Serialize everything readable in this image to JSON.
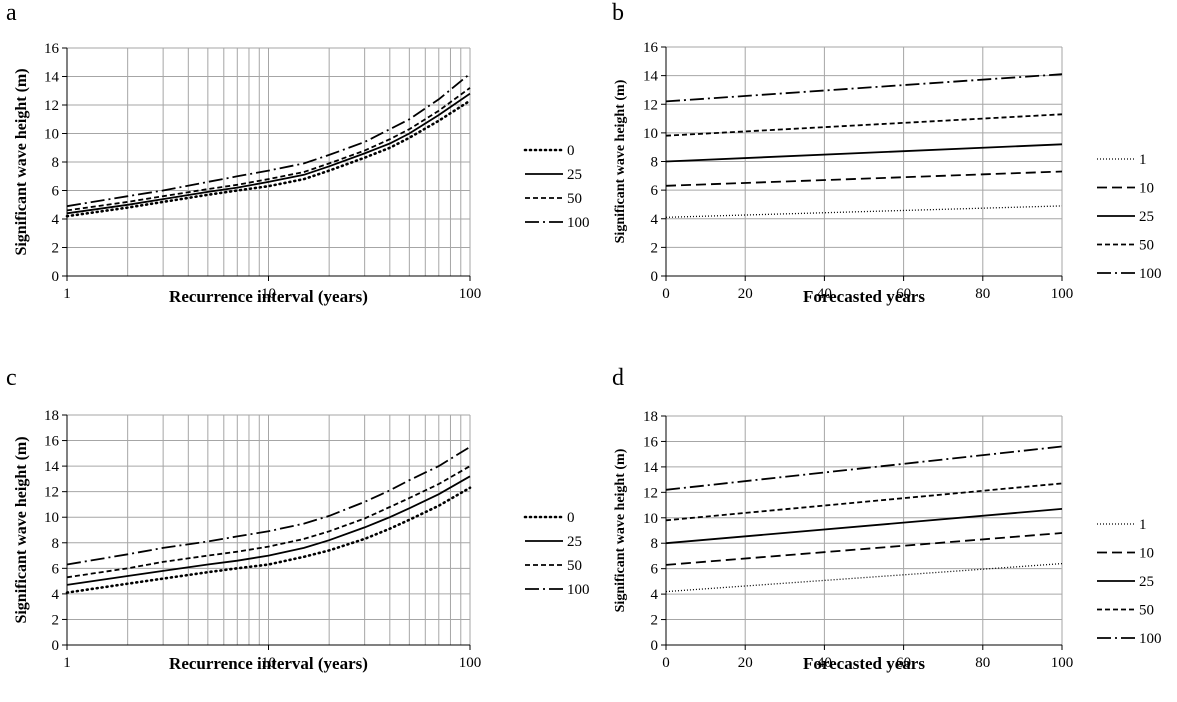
{
  "figure": {
    "legend_style": {
      "0": "1 4",
      "1": "1 2",
      "10": "10 5",
      "25": "",
      "50": "5 3",
      "100": "14 4 2 4"
    },
    "line_color": "#000000",
    "grid_color": "#a6a6a6"
  },
  "chart_data": [
    {
      "id": "a",
      "panel_label": "a",
      "type": "line",
      "xscale": "log",
      "xlabel": "Recurrence interval (years)",
      "ylabel": "Significant wave height (m)",
      "xlim": [
        1,
        100
      ],
      "ylim": [
        0,
        16
      ],
      "xticks": [
        1,
        10,
        100
      ],
      "yticks": [
        0,
        2,
        4,
        6,
        8,
        10,
        12,
        14,
        16
      ],
      "grid": true,
      "legend_position": "right",
      "series": [
        {
          "name": "0",
          "points": [
            [
              1,
              4.2
            ],
            [
              2,
              4.8
            ],
            [
              3,
              5.2
            ],
            [
              5,
              5.7
            ],
            [
              7,
              6.0
            ],
            [
              10,
              6.3
            ],
            [
              15,
              6.8
            ],
            [
              20,
              7.4
            ],
            [
              30,
              8.3
            ],
            [
              40,
              9.0
            ],
            [
              50,
              9.7
            ],
            [
              70,
              10.9
            ],
            [
              100,
              12.3
            ]
          ]
        },
        {
          "name": "25",
          "points": [
            [
              1,
              4.4
            ],
            [
              2,
              5.0
            ],
            [
              3,
              5.4
            ],
            [
              5,
              5.9
            ],
            [
              7,
              6.2
            ],
            [
              10,
              6.6
            ],
            [
              15,
              7.1
            ],
            [
              20,
              7.7
            ],
            [
              30,
              8.6
            ],
            [
              40,
              9.3
            ],
            [
              50,
              10.0
            ],
            [
              70,
              11.3
            ],
            [
              100,
              12.8
            ]
          ]
        },
        {
          "name": "50",
          "points": [
            [
              1,
              4.6
            ],
            [
              2,
              5.2
            ],
            [
              3,
              5.6
            ],
            [
              5,
              6.1
            ],
            [
              7,
              6.4
            ],
            [
              10,
              6.8
            ],
            [
              15,
              7.3
            ],
            [
              20,
              7.9
            ],
            [
              30,
              8.8
            ],
            [
              40,
              9.6
            ],
            [
              50,
              10.3
            ],
            [
              70,
              11.6
            ],
            [
              100,
              13.2
            ]
          ]
        },
        {
          "name": "100",
          "points": [
            [
              1,
              4.9
            ],
            [
              2,
              5.6
            ],
            [
              3,
              6.0
            ],
            [
              5,
              6.6
            ],
            [
              7,
              7.0
            ],
            [
              10,
              7.4
            ],
            [
              15,
              7.9
            ],
            [
              20,
              8.5
            ],
            [
              30,
              9.4
            ],
            [
              40,
              10.3
            ],
            [
              50,
              11.0
            ],
            [
              70,
              12.4
            ],
            [
              100,
              14.2
            ]
          ]
        }
      ]
    },
    {
      "id": "b",
      "panel_label": "b",
      "type": "line",
      "xscale": "linear",
      "xlabel": "Forecasted years",
      "ylabel": "Significant wave height (m)",
      "xlim": [
        0,
        100
      ],
      "ylim": [
        0,
        16
      ],
      "xticks": [
        0,
        20,
        40,
        60,
        80,
        100
      ],
      "yticks": [
        0,
        2,
        4,
        6,
        8,
        10,
        12,
        14,
        16
      ],
      "grid": true,
      "legend_position": "right",
      "series": [
        {
          "name": "1",
          "points": [
            [
              0,
              4.1
            ],
            [
              100,
              4.9
            ]
          ]
        },
        {
          "name": "10",
          "points": [
            [
              0,
              6.3
            ],
            [
              100,
              7.3
            ]
          ]
        },
        {
          "name": "25",
          "points": [
            [
              0,
              8.0
            ],
            [
              100,
              9.2
            ]
          ]
        },
        {
          "name": "50",
          "points": [
            [
              0,
              9.8
            ],
            [
              100,
              11.3
            ]
          ]
        },
        {
          "name": "100",
          "points": [
            [
              0,
              12.2
            ],
            [
              100,
              14.1
            ]
          ]
        }
      ]
    },
    {
      "id": "c",
      "panel_label": "c",
      "type": "line",
      "xscale": "log",
      "xlabel": "Recurrence interval (years)",
      "ylabel": "Significant wave height (m)",
      "xlim": [
        1,
        100
      ],
      "ylim": [
        0,
        18
      ],
      "xticks": [
        1,
        10,
        100
      ],
      "yticks": [
        0,
        2,
        4,
        6,
        8,
        10,
        12,
        14,
        16,
        18
      ],
      "grid": true,
      "legend_position": "right",
      "series": [
        {
          "name": "0",
          "points": [
            [
              1,
              4.1
            ],
            [
              2,
              4.8
            ],
            [
              3,
              5.2
            ],
            [
              5,
              5.7
            ],
            [
              7,
              6.0
            ],
            [
              10,
              6.3
            ],
            [
              15,
              6.9
            ],
            [
              20,
              7.4
            ],
            [
              30,
              8.3
            ],
            [
              40,
              9.1
            ],
            [
              50,
              9.8
            ],
            [
              70,
              10.9
            ],
            [
              100,
              12.3
            ]
          ]
        },
        {
          "name": "25",
          "points": [
            [
              1,
              4.7
            ],
            [
              2,
              5.4
            ],
            [
              3,
              5.8
            ],
            [
              5,
              6.3
            ],
            [
              7,
              6.6
            ],
            [
              10,
              7.0
            ],
            [
              15,
              7.6
            ],
            [
              20,
              8.2
            ],
            [
              30,
              9.2
            ],
            [
              40,
              10.0
            ],
            [
              50,
              10.7
            ],
            [
              70,
              11.8
            ],
            [
              100,
              13.2
            ]
          ]
        },
        {
          "name": "50",
          "points": [
            [
              1,
              5.3
            ],
            [
              2,
              6.0
            ],
            [
              3,
              6.5
            ],
            [
              5,
              7.0
            ],
            [
              7,
              7.3
            ],
            [
              10,
              7.7
            ],
            [
              15,
              8.3
            ],
            [
              20,
              8.9
            ],
            [
              30,
              9.9
            ],
            [
              40,
              10.8
            ],
            [
              50,
              11.5
            ],
            [
              70,
              12.6
            ],
            [
              100,
              14.0
            ]
          ]
        },
        {
          "name": "100",
          "points": [
            [
              1,
              6.3
            ],
            [
              2,
              7.1
            ],
            [
              3,
              7.6
            ],
            [
              5,
              8.1
            ],
            [
              7,
              8.5
            ],
            [
              10,
              8.9
            ],
            [
              15,
              9.5
            ],
            [
              20,
              10.1
            ],
            [
              30,
              11.2
            ],
            [
              40,
              12.1
            ],
            [
              50,
              12.9
            ],
            [
              70,
              14.0
            ],
            [
              100,
              15.5
            ]
          ]
        }
      ]
    },
    {
      "id": "d",
      "panel_label": "d",
      "type": "line",
      "xscale": "linear",
      "xlabel": "Forecasted years",
      "ylabel": "Significant wave height (m)",
      "xlim": [
        0,
        100
      ],
      "ylim": [
        0,
        18
      ],
      "xticks": [
        0,
        20,
        40,
        60,
        80,
        100
      ],
      "yticks": [
        0,
        2,
        4,
        6,
        8,
        10,
        12,
        14,
        16,
        18
      ],
      "grid": true,
      "legend_position": "right",
      "series": [
        {
          "name": "1",
          "points": [
            [
              0,
              4.2
            ],
            [
              100,
              6.4
            ]
          ]
        },
        {
          "name": "10",
          "points": [
            [
              0,
              6.3
            ],
            [
              100,
              8.8
            ]
          ]
        },
        {
          "name": "25",
          "points": [
            [
              0,
              8.0
            ],
            [
              100,
              10.7
            ]
          ]
        },
        {
          "name": "50",
          "points": [
            [
              0,
              9.8
            ],
            [
              100,
              12.7
            ]
          ]
        },
        {
          "name": "100",
          "points": [
            [
              0,
              12.2
            ],
            [
              100,
              15.6
            ]
          ]
        }
      ]
    }
  ]
}
